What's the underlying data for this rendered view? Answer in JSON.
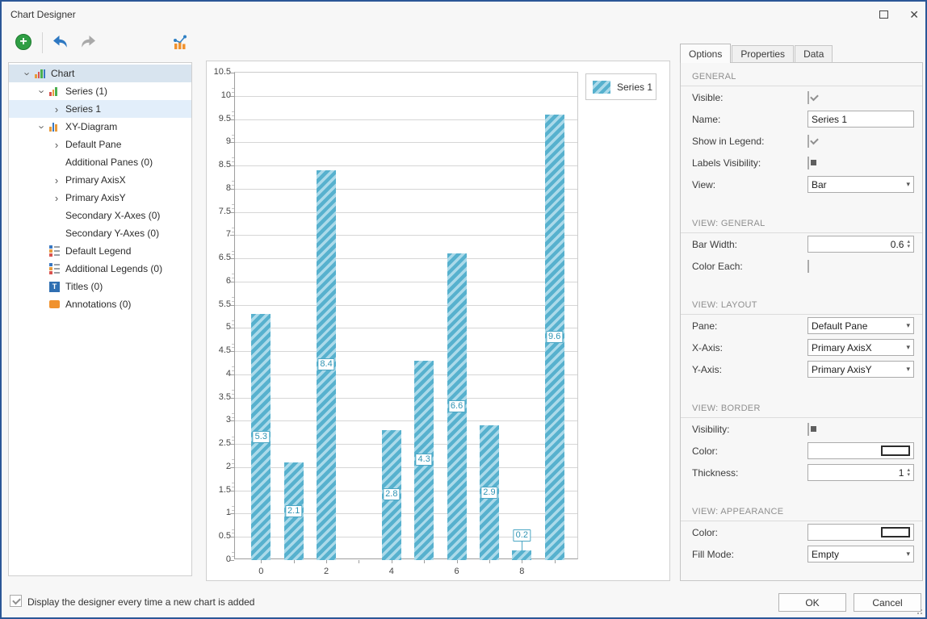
{
  "window": {
    "title": "Chart Designer",
    "border_color": "#2b5797",
    "maximize_icon": "maximize-square",
    "close_icon": "close-x",
    "close_glyph": "✕"
  },
  "toolbar": {
    "add_button_icon": "green-plus-circle",
    "add_glyph": "+",
    "undo_icon": "undo-arrow",
    "redo_icon": "redo-arrow",
    "chart_type_icon": "bar-line-chart"
  },
  "tree": {
    "items": [
      {
        "label": "Chart",
        "depth": 0,
        "icon": "chart-icon",
        "chevron": "expanded",
        "highlighted": true
      },
      {
        "label": "Series (1)",
        "depth": 1,
        "icon": "series-icon",
        "chevron": "expanded"
      },
      {
        "label": "Series 1",
        "depth": 2,
        "chevron": "collapsed",
        "selected": true
      },
      {
        "label": "XY-Diagram",
        "depth": 1,
        "icon": "diagram-icon",
        "chevron": "expanded"
      },
      {
        "label": "Default Pane",
        "depth": 2,
        "chevron": "collapsed"
      },
      {
        "label": "Additional Panes (0)",
        "depth": 2
      },
      {
        "label": "Primary AxisX",
        "depth": 2,
        "chevron": "collapsed"
      },
      {
        "label": "Primary AxisY",
        "depth": 2,
        "chevron": "collapsed"
      },
      {
        "label": "Secondary X-Axes (0)",
        "depth": 2
      },
      {
        "label": "Secondary Y-Axes (0)",
        "depth": 2
      },
      {
        "label": "Default Legend",
        "depth": 1,
        "icon": "legend-icon"
      },
      {
        "label": "Additional Legends (0)",
        "depth": 1,
        "icon": "legend-icon"
      },
      {
        "label": "Titles (0)",
        "depth": 1,
        "icon": "titles-icon"
      },
      {
        "label": "Annotations (0)",
        "depth": 1,
        "icon": "annotations-icon"
      }
    ]
  },
  "chart_data": {
    "type": "bar",
    "x": [
      0,
      1,
      2,
      4,
      5,
      6,
      7,
      8,
      9
    ],
    "values": [
      5.3,
      2.1,
      8.4,
      2.8,
      4.3,
      6.6,
      2.9,
      0.2,
      9.6
    ],
    "point_labels": [
      "5.3",
      "2.1",
      "8.4",
      "2.8",
      "4.3",
      "6.6",
      "2.9",
      "0.2",
      "9.6"
    ],
    "series_name": "Series 1",
    "title": "",
    "xlabel": "",
    "ylabel": "",
    "xlim": [
      -0.8,
      9.75
    ],
    "ylim": [
      0,
      10.5
    ],
    "y_tick_step": 0.5,
    "x_major_ticks": [
      0,
      2,
      4,
      6,
      8
    ],
    "grid": "horizontal",
    "legend_position": "top-right",
    "bar_width_units": 0.6,
    "bar_color": "#57b1ce",
    "hatch_color": "#abdaea",
    "hatch": "diagonal-forward",
    "label_border_color": "#4aa6c4",
    "label_text_color": "#2f93b3"
  },
  "inspector": {
    "tabs": [
      {
        "label": "Options",
        "active": true
      },
      {
        "label": "Properties",
        "active": false
      },
      {
        "label": "Data",
        "active": false
      }
    ],
    "sections": [
      {
        "title": "GENERAL",
        "rows": [
          {
            "label": "Visible:",
            "control": "checkbox",
            "state": "checked"
          },
          {
            "label": "Name:",
            "control": "text",
            "value": "Series 1"
          },
          {
            "label": "Show in Legend:",
            "control": "checkbox",
            "state": "checked"
          },
          {
            "label": "Labels Visibility:",
            "control": "checkbox",
            "state": "indeterminate"
          },
          {
            "label": "View:",
            "control": "combo",
            "value": "Bar"
          }
        ]
      },
      {
        "title": "VIEW: GENERAL",
        "rows": [
          {
            "label": "Bar Width:",
            "control": "spin",
            "value": "0.6"
          },
          {
            "label": "Color Each:",
            "control": "checkbox",
            "state": "unchecked"
          }
        ]
      },
      {
        "title": "VIEW: LAYOUT",
        "rows": [
          {
            "label": "Pane:",
            "control": "combo",
            "value": "Default Pane"
          },
          {
            "label": "X-Axis:",
            "control": "combo",
            "value": "Primary AxisX"
          },
          {
            "label": "Y-Axis:",
            "control": "combo",
            "value": "Primary AxisY"
          }
        ]
      },
      {
        "title": "VIEW: BORDER",
        "rows": [
          {
            "label": "Visibility:",
            "control": "checkbox",
            "state": "indeterminate"
          },
          {
            "label": "Color:",
            "control": "color",
            "value": ""
          },
          {
            "label": "Thickness:",
            "control": "spin",
            "value": "1"
          }
        ]
      },
      {
        "title": "VIEW: APPEARANCE",
        "rows": [
          {
            "label": "Color:",
            "control": "color",
            "value": ""
          },
          {
            "label": "Fill Mode:",
            "control": "combo",
            "value": "Empty"
          }
        ]
      }
    ]
  },
  "footer": {
    "checkbox_label": "Display the designer every time a new chart is added",
    "checkbox_state": "checked",
    "ok_label": "OK",
    "cancel_label": "Cancel"
  }
}
